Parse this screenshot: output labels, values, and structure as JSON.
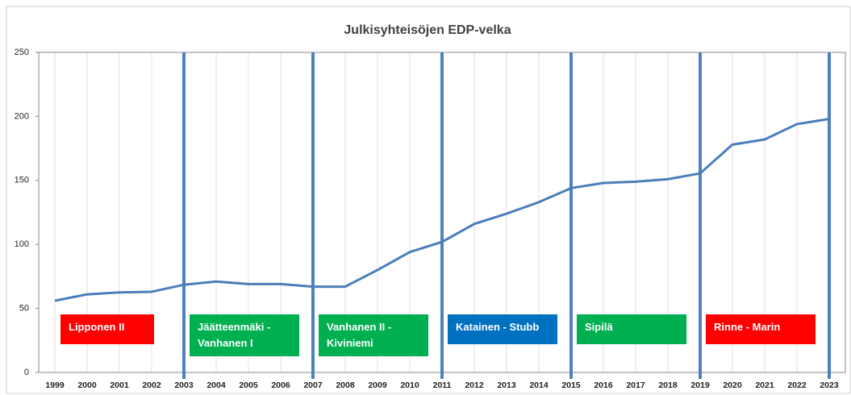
{
  "chart_data": {
    "type": "line",
    "title": "Julkisyhteisöjen EDP-velka",
    "x": [
      1999,
      2000,
      2001,
      2002,
      2003,
      2004,
      2005,
      2006,
      2007,
      2008,
      2009,
      2010,
      2011,
      2012,
      2013,
      2014,
      2015,
      2016,
      2017,
      2018,
      2019,
      2020,
      2021,
      2022,
      2023
    ],
    "series": [
      {
        "color": "#4a7ebb",
        "values": [
          56,
          61,
          62.5,
          63,
          68.5,
          71,
          69,
          69,
          67,
          67,
          80,
          94,
          102,
          116,
          124,
          133,
          144,
          148,
          149,
          151,
          155.5,
          178,
          182,
          194,
          198
        ]
      }
    ],
    "xlim": [
      1998.5,
      2023.5
    ],
    "xticks": [
      1999,
      2000,
      2001,
      2002,
      2003,
      2004,
      2005,
      2006,
      2007,
      2008,
      2009,
      2010,
      2011,
      2012,
      2013,
      2014,
      2015,
      2016,
      2017,
      2018,
      2019,
      2020,
      2021,
      2022,
      2023
    ],
    "ylim": [
      0,
      250
    ],
    "yticks": [
      0,
      50,
      100,
      150,
      200,
      250
    ],
    "grid": true,
    "periods": [
      {
        "label": "Lipponen II",
        "color": "#ff0000",
        "start": 1999,
        "end": 2003
      },
      {
        "label": "Jäätteenmäki - Vanhanen I",
        "color": "#00b050",
        "start": 2003,
        "end": 2007
      },
      {
        "label": "Vanhanen II - Kiviniemi",
        "color": "#00b050",
        "start": 2007,
        "end": 2011
      },
      {
        "label": "Katainen - Stubb",
        "color": "#0070c0",
        "start": 2011,
        "end": 2015
      },
      {
        "label": "Sipilä",
        "color": "#00b050",
        "start": 2015,
        "end": 2019
      },
      {
        "label": "Rinne - Marin",
        "color": "#ff0000",
        "start": 2019,
        "end": 2023
      }
    ]
  }
}
